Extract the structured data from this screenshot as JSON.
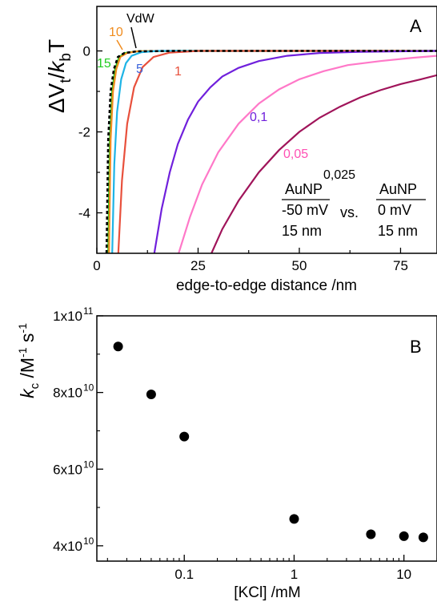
{
  "chart_data": [
    {
      "panel": "A",
      "type": "line",
      "panel_label": "A",
      "xlabel": "edge-to-edge distance /nm",
      "ylabel": "ΔVt/kbT",
      "xlim": [
        0,
        84
      ],
      "ylim": [
        -5,
        1.1
      ],
      "xticks": [
        "0",
        "25",
        "50",
        "75"
      ],
      "yticks": [
        "0",
        "-2",
        "-4"
      ],
      "series": [
        {
          "name": "15",
          "color": "#22cc22",
          "values": [
            [
              2.8,
              -5.0
            ],
            [
              3.2,
              -2.2
            ],
            [
              3.8,
              -1.0
            ],
            [
              4.5,
              -0.45
            ],
            [
              5.5,
              -0.15
            ],
            [
              7,
              -0.05
            ],
            [
              10,
              -0.01
            ],
            [
              20,
              0
            ],
            [
              84,
              0
            ]
          ]
        },
        {
          "name": "10",
          "color": "#f08c1e",
          "values": [
            [
              3.0,
              -5.0
            ],
            [
              3.4,
              -2.2
            ],
            [
              4.0,
              -1.0
            ],
            [
              4.8,
              -0.45
            ],
            [
              5.8,
              -0.15
            ],
            [
              7.5,
              -0.05
            ],
            [
              10,
              -0.01
            ],
            [
              20,
              0
            ],
            [
              84,
              0
            ]
          ]
        },
        {
          "name": "5",
          "color": "#1eb4e6",
          "values": [
            [
              3.8,
              -5.0
            ],
            [
              4.3,
              -2.8
            ],
            [
              5.0,
              -1.5
            ],
            [
              6.0,
              -0.7
            ],
            [
              7.2,
              -0.3
            ],
            [
              8.6,
              -0.12
            ],
            [
              11,
              -0.03
            ],
            [
              15,
              0
            ],
            [
              84,
              0
            ]
          ]
        },
        {
          "name": "1",
          "color": "#e8503c",
          "values": [
            [
              5.3,
              -5.0
            ],
            [
              6.2,
              -3.2
            ],
            [
              7.5,
              -1.8
            ],
            [
              9.2,
              -0.9
            ],
            [
              11.3,
              -0.4
            ],
            [
              14,
              -0.15
            ],
            [
              18,
              -0.04
            ],
            [
              25,
              0
            ],
            [
              84,
              0
            ]
          ]
        },
        {
          "name": "0,1",
          "color": "#7020dc",
          "values": [
            [
              14.2,
              -5.0
            ],
            [
              16,
              -3.9
            ],
            [
              18,
              -3.0
            ],
            [
              20,
              -2.3
            ],
            [
              22.5,
              -1.7
            ],
            [
              25,
              -1.25
            ],
            [
              28,
              -0.9
            ],
            [
              31,
              -0.63
            ],
            [
              35,
              -0.42
            ],
            [
              40,
              -0.25
            ],
            [
              47,
              -0.12
            ],
            [
              55,
              -0.05
            ],
            [
              65,
              -0.02
            ],
            [
              84,
              0
            ]
          ]
        },
        {
          "name": "0,05",
          "color": "#ff78c8",
          "values": [
            [
              20.2,
              -5.0
            ],
            [
              23,
              -4.1
            ],
            [
              26,
              -3.3
            ],
            [
              30,
              -2.5
            ],
            [
              35,
              -1.8
            ],
            [
              40,
              -1.3
            ],
            [
              45,
              -0.95
            ],
            [
              50,
              -0.7
            ],
            [
              56,
              -0.5
            ],
            [
              62,
              -0.35
            ],
            [
              70,
              -0.25
            ],
            [
              78,
              -0.17
            ],
            [
              84,
              -0.12
            ]
          ]
        },
        {
          "name": "0,025",
          "color": "#a0145a",
          "values": [
            [
              28.3,
              -5.0
            ],
            [
              31,
              -4.4
            ],
            [
              35,
              -3.7
            ],
            [
              40,
              -3.0
            ],
            [
              45,
              -2.45
            ],
            [
              50,
              -2.0
            ],
            [
              55,
              -1.65
            ],
            [
              60,
              -1.38
            ],
            [
              65,
              -1.15
            ],
            [
              70,
              -0.97
            ],
            [
              75,
              -0.82
            ],
            [
              80,
              -0.7
            ],
            [
              84,
              -0.6
            ]
          ]
        },
        {
          "name": "VdW",
          "color": "#000000",
          "dashed": true,
          "values": [
            [
              2.4,
              -5.0
            ],
            [
              2.8,
              -2.2
            ],
            [
              3.4,
              -1.0
            ],
            [
              4.2,
              -0.45
            ],
            [
              5.2,
              -0.15
            ],
            [
              6.8,
              -0.05
            ],
            [
              10,
              -0.01
            ],
            [
              20,
              0
            ],
            [
              84,
              0
            ]
          ]
        }
      ],
      "legend_box": {
        "left": {
          "title": "AuNP",
          "line1": "-50 mV",
          "line2": "15 nm"
        },
        "vs": "vs.",
        "right": {
          "title": "AuNP",
          "line1": "0 mV",
          "line2": "15 nm"
        }
      }
    },
    {
      "panel": "B",
      "type": "scatter",
      "panel_label": "B",
      "xlabel": "[KCl] /mM",
      "ylabel": "kc /M-1 s-1",
      "xscale": "log",
      "xlim": [
        0.016,
        20
      ],
      "ylim": [
        36000000000.0,
        100000000000.0
      ],
      "xticks": [
        "0.1",
        "1",
        "10"
      ],
      "yticks": [
        "4x10",
        "6x10",
        "8x10",
        "1x10"
      ],
      "ytick_exp": "10",
      "x": [
        0.025,
        0.05,
        0.1,
        1,
        5,
        10,
        15
      ],
      "y": [
        92000000000.0,
        79500000000.0,
        68500000000.0,
        47000000000.0,
        43000000000.0,
        42500000000.0,
        42200000000.0
      ]
    }
  ]
}
